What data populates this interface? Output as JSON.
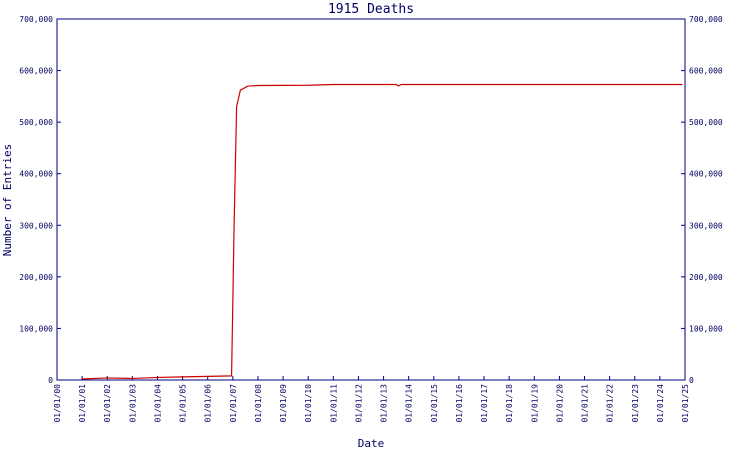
{
  "chart_data": {
    "type": "line",
    "title": "1915 Deaths",
    "x_label": "Date",
    "y_label": "Number of Entries",
    "color": "#cc0000",
    "axis_color": "#000080",
    "grid": false,
    "x": [
      2001,
      2002,
      2003,
      2004,
      2005,
      2006,
      2006.95,
      2007.05,
      2007.15,
      2007.3,
      2007.6,
      2008,
      2010,
      2011,
      2013.5,
      2013.6,
      2013.7,
      2024.9
    ],
    "values": [
      2000,
      4000,
      3000,
      5000,
      6000,
      7000,
      8000,
      300000,
      530000,
      562000,
      570000,
      571000,
      571500,
      573000,
      573000,
      570000,
      573000,
      573000
    ],
    "xlim": [
      2000,
      2025
    ],
    "xticks": [
      {
        "value": 2000,
        "label": "01/01/00"
      },
      {
        "value": 2001,
        "label": "01/01/01"
      },
      {
        "value": 2002,
        "label": "01/01/02"
      },
      {
        "value": 2003,
        "label": "01/01/03"
      },
      {
        "value": 2004,
        "label": "01/01/04"
      },
      {
        "value": 2005,
        "label": "01/01/05"
      },
      {
        "value": 2006,
        "label": "01/01/06"
      },
      {
        "value": 2007,
        "label": "01/01/07"
      },
      {
        "value": 2008,
        "label": "01/01/08"
      },
      {
        "value": 2009,
        "label": "01/01/09"
      },
      {
        "value": 2010,
        "label": "01/01/10"
      },
      {
        "value": 2011,
        "label": "01/01/11"
      },
      {
        "value": 2012,
        "label": "01/01/12"
      },
      {
        "value": 2013,
        "label": "01/01/13"
      },
      {
        "value": 2014,
        "label": "01/01/14"
      },
      {
        "value": 2015,
        "label": "01/01/15"
      },
      {
        "value": 2016,
        "label": "01/01/16"
      },
      {
        "value": 2017,
        "label": "01/01/17"
      },
      {
        "value": 2018,
        "label": "01/01/18"
      },
      {
        "value": 2019,
        "label": "01/01/19"
      },
      {
        "value": 2020,
        "label": "01/01/20"
      },
      {
        "value": 2021,
        "label": "01/01/21"
      },
      {
        "value": 2022,
        "label": "01/01/22"
      },
      {
        "value": 2023,
        "label": "01/01/23"
      },
      {
        "value": 2024,
        "label": "01/01/24"
      },
      {
        "value": 2025,
        "label": "01/01/25"
      }
    ],
    "ylim": [
      0,
      700000
    ],
    "yticks": [
      0,
      {
        "value": 100000,
        "label": "100,000"
      },
      {
        "value": 200000,
        "label": "200,000"
      },
      {
        "value": 300000,
        "label": "300,000"
      },
      {
        "value": 400000,
        "label": "400,000"
      },
      {
        "value": 500000,
        "label": "500,000"
      },
      {
        "value": 600000,
        "label": "600,000"
      },
      {
        "value": 700000,
        "label": "700,000"
      }
    ]
  }
}
